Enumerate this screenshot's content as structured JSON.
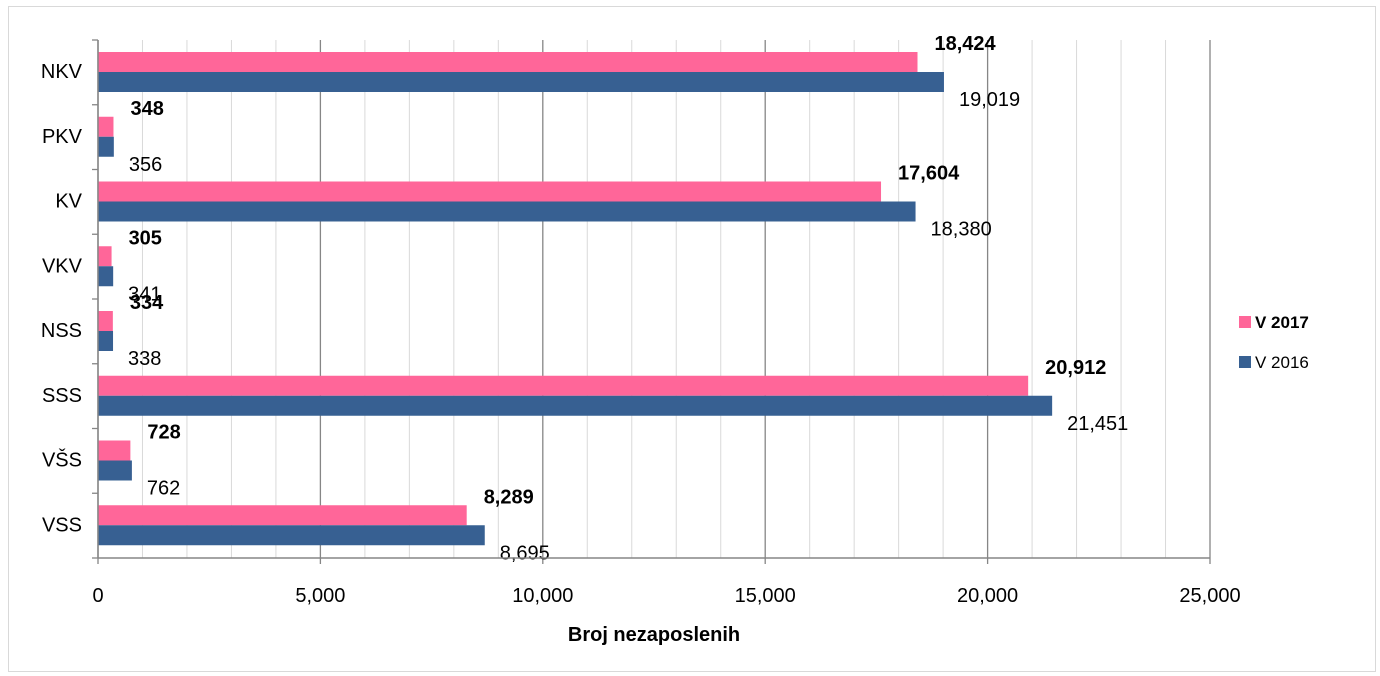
{
  "chart_data": {
    "type": "bar",
    "orientation": "horizontal",
    "categories": [
      "NKV",
      "PKV",
      "KV",
      "VKV",
      "NSS",
      "SSS",
      "VŠS",
      "VSS"
    ],
    "series": [
      {
        "name": "V 2017",
        "values": [
          18424,
          348,
          17604,
          305,
          334,
          20912,
          728,
          8289
        ],
        "color": "#ff6699",
        "label_bold": true
      },
      {
        "name": "V 2016",
        "values": [
          19019,
          356,
          18380,
          341,
          338,
          21451,
          762,
          8695
        ],
        "color": "#376092",
        "label_bold": false
      }
    ],
    "data_labels": {
      "V 2017": [
        "18,424",
        "348",
        "17,604",
        "305",
        "334",
        "20,912",
        "728",
        "8,289"
      ],
      "V 2016": [
        "19,019",
        "356",
        "18,380",
        "341",
        "338",
        "21,451",
        "762",
        "8,695"
      ]
    },
    "xlabel": "Broj nezaposlenih",
    "ylabel": "",
    "xlim": [
      0,
      25000
    ],
    "xticks": [
      0,
      5000,
      10000,
      15000,
      20000,
      25000
    ],
    "xtick_labels": [
      "0",
      "5,000",
      "10,000",
      "15,000",
      "20,000",
      "25,000"
    ],
    "grid": "vertical major and minor",
    "legend_position": "right"
  }
}
